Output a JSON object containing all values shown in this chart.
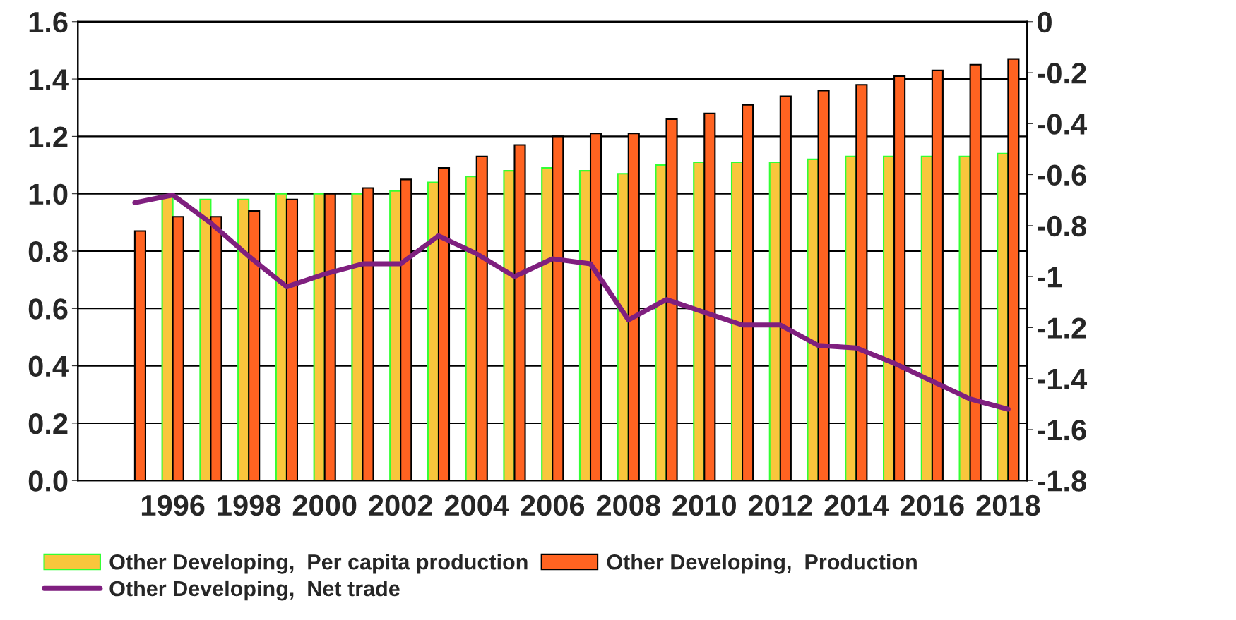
{
  "chart_data": {
    "type": "bar",
    "categories": [
      null,
      null,
      "1996",
      null,
      "1998",
      null,
      "2000",
      null,
      "2002",
      null,
      "2004",
      null,
      "2006",
      null,
      "2008",
      null,
      "2010",
      null,
      "2012",
      null,
      "2014",
      null,
      "2016",
      null,
      "2018"
    ],
    "series": [
      {
        "name": "Other Developing,  Per capita production",
        "color": "#f9c63c",
        "values": [
          null,
          null,
          0.99,
          0.98,
          0.98,
          1.0,
          1.0,
          1.0,
          1.01,
          1.04,
          1.06,
          1.08,
          1.09,
          1.08,
          1.07,
          1.1,
          1.11,
          1.11,
          1.11,
          1.12,
          1.13,
          1.13,
          1.13,
          1.13,
          1.14
        ]
      },
      {
        "name": "Other Developing,  Production",
        "color": "#ff6321",
        "values": [
          null,
          0.87,
          0.92,
          0.92,
          0.94,
          0.98,
          1.0,
          1.02,
          1.05,
          1.09,
          1.13,
          1.17,
          1.2,
          1.21,
          1.21,
          1.26,
          1.28,
          1.31,
          1.34,
          1.36,
          1.38,
          1.41,
          1.43,
          1.45,
          1.47
        ]
      },
      {
        "name": "Other Developing,  Net trade",
        "type": "line",
        "axis": "y2",
        "color": "#7f1f7f",
        "values": [
          null,
          -0.71,
          -0.68,
          -0.79,
          -0.92,
          -1.04,
          -0.99,
          -0.95,
          -0.95,
          -0.84,
          -0.91,
          -1.0,
          -0.93,
          -0.95,
          -1.17,
          -1.09,
          -1.14,
          -1.19,
          -1.19,
          -1.27,
          -1.28,
          -1.34,
          -1.41,
          -1.48,
          -1.52
        ]
      }
    ],
    "ylim": [
      0,
      1.6
    ],
    "yticks": [
      {
        "value": 0,
        "label": "0.0"
      },
      0.2,
      0.4,
      0.6,
      0.8,
      {
        "value": 1,
        "label": "1.0"
      },
      1.2,
      1.4,
      1.6
    ],
    "y2lim": [
      -1.8,
      0
    ],
    "y2ticks": [
      -1.8,
      -1.6,
      -1.4,
      -1.2,
      -1,
      -0.8,
      -0.6,
      -0.4,
      -0.2,
      0
    ],
    "grid": "y",
    "legend": "bottom",
    "line_style": "solid",
    "marker": "none"
  }
}
